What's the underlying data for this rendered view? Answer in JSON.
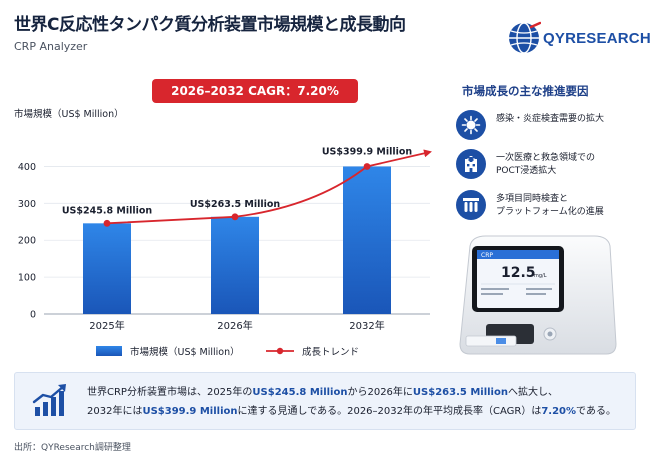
{
  "header": {
    "title": "世界C反応性タンパク質分析装置市場規模と成長動向",
    "subtitle": "CRP Analyzer",
    "logo_text": "QYRESEARCH"
  },
  "cagr_label": "2026–2032 CAGR：7.20%",
  "chart_data": {
    "type": "bar",
    "ylabel": "市場規模（US$ Million）",
    "ylim": [
      0,
      450
    ],
    "yticks": [
      "0",
      "100",
      "200",
      "300",
      "400"
    ],
    "categories": [
      "2025年",
      "2026年",
      "2032年"
    ],
    "series": [
      {
        "name": "市場規模（US$ Million）",
        "values": [
          245.8,
          263.5,
          399.9
        ]
      }
    ],
    "data_labels": [
      "US$245.8 Million",
      "US$263.5 Million",
      "US$399.9 Million"
    ],
    "trend_name": "成長トレンド",
    "colors": {
      "bar_top": "#2f86e8",
      "bar_bottom": "#1a56b8",
      "trend": "#d8262d"
    }
  },
  "drivers": {
    "title": "市場成長の主な推進要因",
    "items": [
      {
        "icon": "virus-icon",
        "lines": [
          "感染・炎症検査需要の拡大"
        ]
      },
      {
        "icon": "hospital-icon",
        "lines": [
          "一次医療と救急領域での",
          "POCT浸透拡大"
        ]
      },
      {
        "icon": "lab-instrument-icon",
        "lines": [
          "多項目同時検査と",
          "プラットフォーム化の進展"
        ]
      }
    ]
  },
  "device": {
    "screen_title": "CRP",
    "reading_value": "12.5",
    "reading_unit": "mg/L"
  },
  "summary": {
    "p1": "世界CRP分析装置市場は、2025年の",
    "v1": "US$245.8 Million",
    "p2": "から2026年に",
    "v2": "US$263.5 Million",
    "p3": "へ拡大し、",
    "p4": "2032年には",
    "v3": "US$399.9 Million",
    "p5": "に達する見通しである。2026–2032年の年平均成長率（CAGR）は",
    "v4": "7.20%",
    "p6": "である。"
  },
  "source": "出所：QYResearch調研整理"
}
